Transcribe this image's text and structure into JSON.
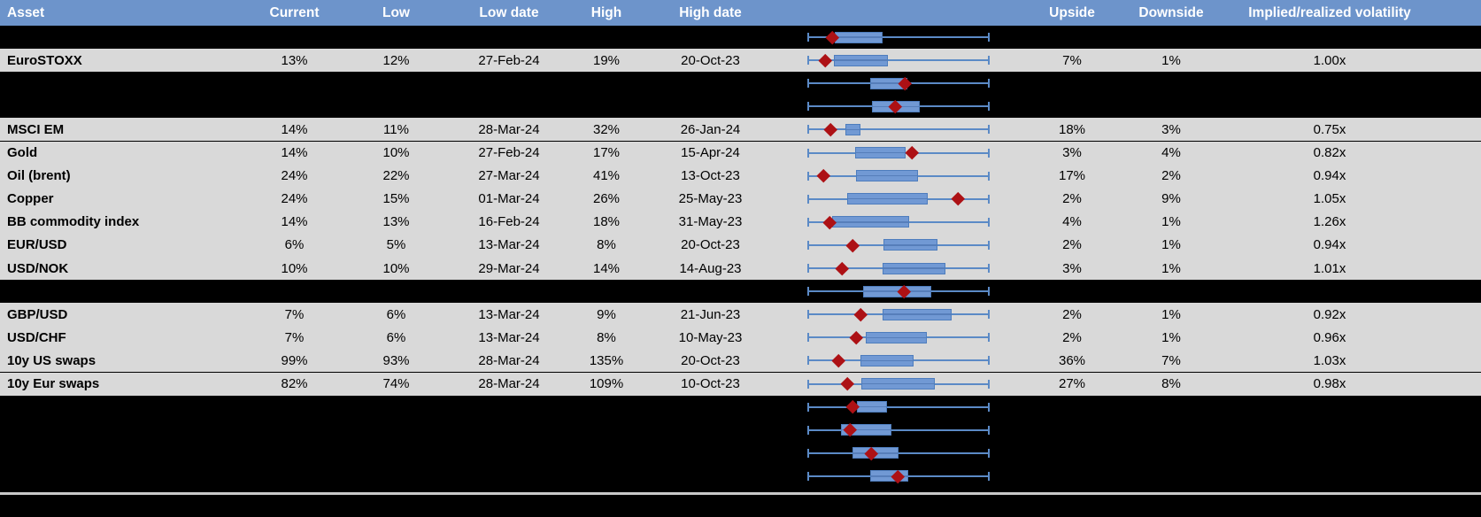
{
  "colors": {
    "header_bg": "#6d94cb",
    "header_text": "#ffffff",
    "row_bg": "#d9d9d9",
    "hidden_row_bg": "#000000",
    "whisker_blue": "#5b8ac6",
    "box_fill_blue": "#7199d4",
    "box_border_blue": "#4e7dbd",
    "marker_dark_red": "#ad1115",
    "divider_gray": "#c9c9c9"
  },
  "table": {
    "columns": [
      "Asset",
      "Current",
      "Low",
      "Low date",
      "High",
      "High date",
      "Upside",
      "Downside",
      "Implied/realized volatility"
    ],
    "rows": [
      {
        "kind": "hidden"
      },
      {
        "kind": "data",
        "asset": "EuroSTOXX",
        "current": "13%",
        "low": "12%",
        "low_date": "27-Feb-24",
        "high": "19%",
        "high_date": "20-Oct-23",
        "upside": "7%",
        "downside": "1%",
        "implied_realized": "1.00x"
      },
      {
        "kind": "hidden"
      },
      {
        "kind": "hidden"
      },
      {
        "kind": "data",
        "asset": "MSCI EM",
        "current": "14%",
        "low": "11%",
        "low_date": "28-Mar-24",
        "high": "32%",
        "high_date": "26-Jan-24",
        "upside": "18%",
        "downside": "3%",
        "implied_realized": "0.75x"
      },
      {
        "kind": "data",
        "asset": "Gold",
        "current": "14%",
        "low": "10%",
        "low_date": "27-Feb-24",
        "high": "17%",
        "high_date": "15-Apr-24",
        "upside": "3%",
        "downside": "4%",
        "implied_realized": "0.82x"
      },
      {
        "kind": "data",
        "asset": "Oil (brent)",
        "current": "24%",
        "low": "22%",
        "low_date": "27-Mar-24",
        "high": "41%",
        "high_date": "13-Oct-23",
        "upside": "17%",
        "downside": "2%",
        "implied_realized": "0.94x"
      },
      {
        "kind": "data",
        "asset": "Copper",
        "current": "24%",
        "low": "15%",
        "low_date": "01-Mar-24",
        "high": "26%",
        "high_date": "25-May-23",
        "upside": "2%",
        "downside": "9%",
        "implied_realized": "1.05x"
      },
      {
        "kind": "data",
        "asset": "BB commodity index",
        "current": "14%",
        "low": "13%",
        "low_date": "16-Feb-24",
        "high": "18%",
        "high_date": "31-May-23",
        "upside": "4%",
        "downside": "1%",
        "implied_realized": "1.26x"
      },
      {
        "kind": "data",
        "asset": "EUR/USD",
        "current": "6%",
        "low": "5%",
        "low_date": "13-Mar-24",
        "high": "8%",
        "high_date": "20-Oct-23",
        "upside": "2%",
        "downside": "1%",
        "implied_realized": "0.94x"
      },
      {
        "kind": "data",
        "asset": "USD/NOK",
        "current": "10%",
        "low": "10%",
        "low_date": "29-Mar-24",
        "high": "14%",
        "high_date": "14-Aug-23",
        "upside": "3%",
        "downside": "1%",
        "implied_realized": "1.01x"
      },
      {
        "kind": "hidden"
      },
      {
        "kind": "data",
        "asset": "GBP/USD",
        "current": "7%",
        "low": "6%",
        "low_date": "13-Mar-24",
        "high": "9%",
        "high_date": "21-Jun-23",
        "upside": "2%",
        "downside": "1%",
        "implied_realized": "0.92x"
      },
      {
        "kind": "data",
        "asset": "USD/CHF",
        "current": "7%",
        "low": "6%",
        "low_date": "13-Mar-24",
        "high": "8%",
        "high_date": "10-May-23",
        "upside": "2%",
        "downside": "1%",
        "implied_realized": "0.96x"
      },
      {
        "kind": "data",
        "asset": "10y US swaps",
        "current": "99%",
        "low": "93%",
        "low_date": "28-Mar-24",
        "high": "135%",
        "high_date": "20-Oct-23",
        "upside": "36%",
        "downside": "7%",
        "implied_realized": "1.03x"
      },
      {
        "kind": "data",
        "asset": "10y Eur swaps",
        "current": "82%",
        "low": "74%",
        "low_date": "28-Mar-24",
        "high": "109%",
        "high_date": "10-Oct-23",
        "upside": "27%",
        "downside": "8%",
        "implied_realized": "0.98x"
      },
      {
        "kind": "hidden"
      },
      {
        "kind": "hidden"
      },
      {
        "kind": "hidden"
      },
      {
        "kind": "hidden"
      }
    ]
  },
  "chart_data": {
    "type": "boxplot",
    "note": "One horizontal box-whisker per table row; whiskers span the full normalized low-high range (0 to 1); box and diamond marker positions are fractions of that range",
    "axis_range": [
      0,
      1
    ],
    "rows": [
      {
        "label": "",
        "whisker": [
          0,
          1
        ],
        "box": [
          0.15,
          0.413
        ],
        "marker": 0.135
      },
      {
        "label": "EuroSTOXX",
        "whisker": [
          0,
          1
        ],
        "box": [
          0.146,
          0.442
        ],
        "marker": 0.1
      },
      {
        "label": "",
        "whisker": [
          0,
          1
        ],
        "box": [
          0.345,
          0.549
        ],
        "marker": 0.534
      },
      {
        "label": "",
        "whisker": [
          0,
          1
        ],
        "box": [
          0.354,
          0.617
        ],
        "marker": 0.48
      },
      {
        "label": "MSCI EM",
        "whisker": [
          0,
          1
        ],
        "box": [
          0.209,
          0.291
        ],
        "marker": 0.126
      },
      {
        "label": "Gold",
        "whisker": [
          0,
          1
        ],
        "box": [
          0.262,
          0.539
        ],
        "marker": 0.573
      },
      {
        "label": "Oil (brent)",
        "whisker": [
          0,
          1
        ],
        "box": [
          0.267,
          0.607
        ],
        "marker": 0.087
      },
      {
        "label": "Copper",
        "whisker": [
          0,
          1
        ],
        "box": [
          0.218,
          0.66
        ],
        "marker": 0.825
      },
      {
        "label": "BB commodity index",
        "whisker": [
          0,
          1
        ],
        "box": [
          0.136,
          0.558
        ],
        "marker": 0.121
      },
      {
        "label": "EUR/USD",
        "whisker": [
          0,
          1
        ],
        "box": [
          0.417,
          0.713
        ],
        "marker": 0.248
      },
      {
        "label": "USD/NOK",
        "whisker": [
          0,
          1
        ],
        "box": [
          0.413,
          0.757
        ],
        "marker": 0.189
      },
      {
        "label": "",
        "whisker": [
          0,
          1
        ],
        "box": [
          0.306,
          0.68
        ],
        "marker": 0.529
      },
      {
        "label": "GBP/USD",
        "whisker": [
          0,
          1
        ],
        "box": [
          0.413,
          0.791
        ],
        "marker": 0.291
      },
      {
        "label": "USD/CHF",
        "whisker": [
          0,
          1
        ],
        "box": [
          0.32,
          0.655
        ],
        "marker": 0.267
      },
      {
        "label": "10y US swaps",
        "whisker": [
          0,
          1
        ],
        "box": [
          0.291,
          0.583
        ],
        "marker": 0.17
      },
      {
        "label": "10y Eur swaps",
        "whisker": [
          0,
          1
        ],
        "box": [
          0.296,
          0.699
        ],
        "marker": 0.218
      },
      {
        "label": "",
        "whisker": [
          0,
          1
        ],
        "box": [
          0.272,
          0.437
        ],
        "marker": 0.248
      },
      {
        "label": "",
        "whisker": [
          0,
          1
        ],
        "box": [
          0.184,
          0.461
        ],
        "marker": 0.233
      },
      {
        "label": "",
        "whisker": [
          0,
          1
        ],
        "box": [
          0.248,
          0.5
        ],
        "marker": 0.35
      },
      {
        "label": "",
        "whisker": [
          0,
          1
        ],
        "box": [
          0.345,
          0.553
        ],
        "marker": 0.495
      }
    ]
  }
}
